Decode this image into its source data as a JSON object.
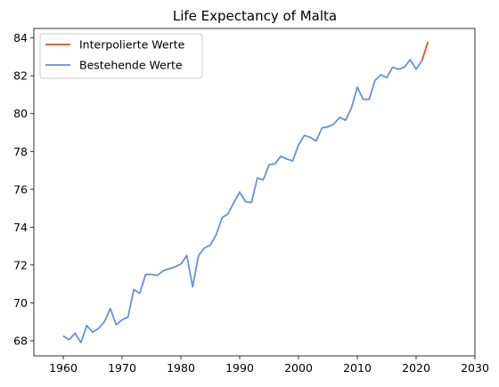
{
  "chart_data": {
    "type": "line",
    "title": "Life Expectancy of Malta",
    "xlabel": "",
    "ylabel": "",
    "xlim": [
      1955,
      2030
    ],
    "ylim": [
      67.2,
      84.5
    ],
    "xticks": [
      1960,
      1970,
      1980,
      1990,
      2000,
      2010,
      2020,
      2030
    ],
    "yticks": [
      68,
      70,
      72,
      74,
      76,
      78,
      80,
      82,
      84
    ],
    "grid": false,
    "legend_position": "upper-left",
    "series": [
      {
        "name": "Interpolierte Werte",
        "color": "#e8511e",
        "x": [
          2021,
          2022
        ],
        "y": [
          82.8,
          83.8
        ]
      },
      {
        "name": "Bestehende Werte",
        "color": "#6b8fd6",
        "x": [
          1960,
          1961,
          1962,
          1963,
          1964,
          1965,
          1966,
          1967,
          1968,
          1969,
          1970,
          1971,
          1972,
          1973,
          1974,
          1975,
          1976,
          1977,
          1978,
          1979,
          1980,
          1981,
          1982,
          1983,
          1984,
          1985,
          1986,
          1987,
          1988,
          1989,
          1990,
          1991,
          1992,
          1993,
          1994,
          1995,
          1996,
          1997,
          1998,
          1999,
          2000,
          2001,
          2002,
          2003,
          2004,
          2005,
          2006,
          2007,
          2008,
          2009,
          2010,
          2011,
          2012,
          2013,
          2014,
          2015,
          2016,
          2017,
          2018,
          2019,
          2020,
          2021
        ],
        "y": [
          68.25,
          68.05,
          68.4,
          67.9,
          68.8,
          68.45,
          68.65,
          69.0,
          69.7,
          68.85,
          69.1,
          69.25,
          70.7,
          70.5,
          71.5,
          71.5,
          71.45,
          71.7,
          71.8,
          71.9,
          72.05,
          72.5,
          70.85,
          72.5,
          72.9,
          73.05,
          73.6,
          74.5,
          74.7,
          75.3,
          75.85,
          75.35,
          75.3,
          76.6,
          76.5,
          77.3,
          77.35,
          77.75,
          77.6,
          77.5,
          78.35,
          78.85,
          78.75,
          78.55,
          79.25,
          79.3,
          79.45,
          79.8,
          79.65,
          80.3,
          81.4,
          80.75,
          80.75,
          81.75,
          82.05,
          81.9,
          82.45,
          82.35,
          82.45,
          82.85,
          82.35,
          82.8
        ]
      }
    ]
  }
}
